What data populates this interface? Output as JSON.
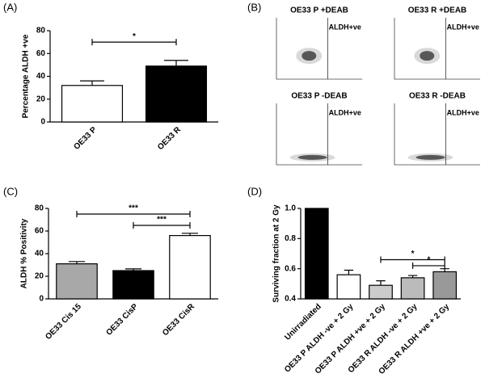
{
  "panel_labels": [
    "(A)",
    "(B)",
    "(C)",
    "(D)"
  ],
  "chart_data": [
    {
      "type": "bar",
      "ylabel": "Percentage ALDH +ve",
      "categories": [
        "OE33 P",
        "OE33 R"
      ],
      "values": [
        32,
        49
      ],
      "errors": [
        4,
        5
      ],
      "colors": [
        "#ffffff",
        "#000000"
      ],
      "ylim": [
        0,
        80
      ],
      "yticks": [
        0,
        20,
        40,
        60,
        80
      ],
      "annotations": [
        {
          "label": "*",
          "from": 0,
          "to": 1,
          "y": 70
        }
      ]
    },
    {
      "type": "bar",
      "ylabel": "ALDH % Positivity",
      "categories": [
        "OE33 Cis 15",
        "OE33 CisP",
        "OE33 CisR"
      ],
      "values": [
        31,
        25,
        56
      ],
      "errors": [
        2,
        1.5,
        2
      ],
      "colors": [
        "#a8a8a8",
        "#000000",
        "#ffffff"
      ],
      "ylim": [
        0,
        80
      ],
      "yticks": [
        0,
        20,
        40,
        60,
        80
      ],
      "annotations": [
        {
          "label": "***",
          "from": 0,
          "to": 2,
          "y": 75
        },
        {
          "label": "***",
          "from": 1,
          "to": 2,
          "y": 65
        }
      ]
    },
    {
      "type": "bar",
      "ylabel": "Surviving fraction at 2 Gy",
      "categories": [
        "Unirradiated",
        "OE33 P ALDH -ve + 2 Gy",
        "OE33 P ALDH +ve + 2 Gy",
        "OE33 R ALDH -ve + 2 Gy",
        "OE33 R ALDH +ve + 2 Gy"
      ],
      "values": [
        1,
        0.56,
        0.49,
        0.54,
        0.58
      ],
      "errors": [
        0,
        0.03,
        0.03,
        0.015,
        0.02
      ],
      "colors": [
        "#000000",
        "#ffffff",
        "#cccccc",
        "#bbbbbb",
        "#999999"
      ],
      "ylim": [
        0.4,
        1
      ],
      "yticks": [
        0.4,
        0.6,
        0.8,
        {
          "value": 1,
          "label": "1.0"
        }
      ],
      "annotations": [
        {
          "label": "*",
          "from": 2,
          "to": 4,
          "y": 0.66
        },
        {
          "label": "*",
          "from": 3,
          "to": 4,
          "y": 0.62
        }
      ]
    }
  ],
  "flow": [
    {
      "title": "OE33 P +DEAB",
      "gate": "ALDH+ve"
    },
    {
      "title": "OE33 R +DEAB",
      "gate": "ALDH+ve"
    },
    {
      "title": "OE33 P -DEAB",
      "gate": "ALDH+ve"
    },
    {
      "title": "OE33 R -DEAB",
      "gate": "ALDH+ve"
    }
  ]
}
